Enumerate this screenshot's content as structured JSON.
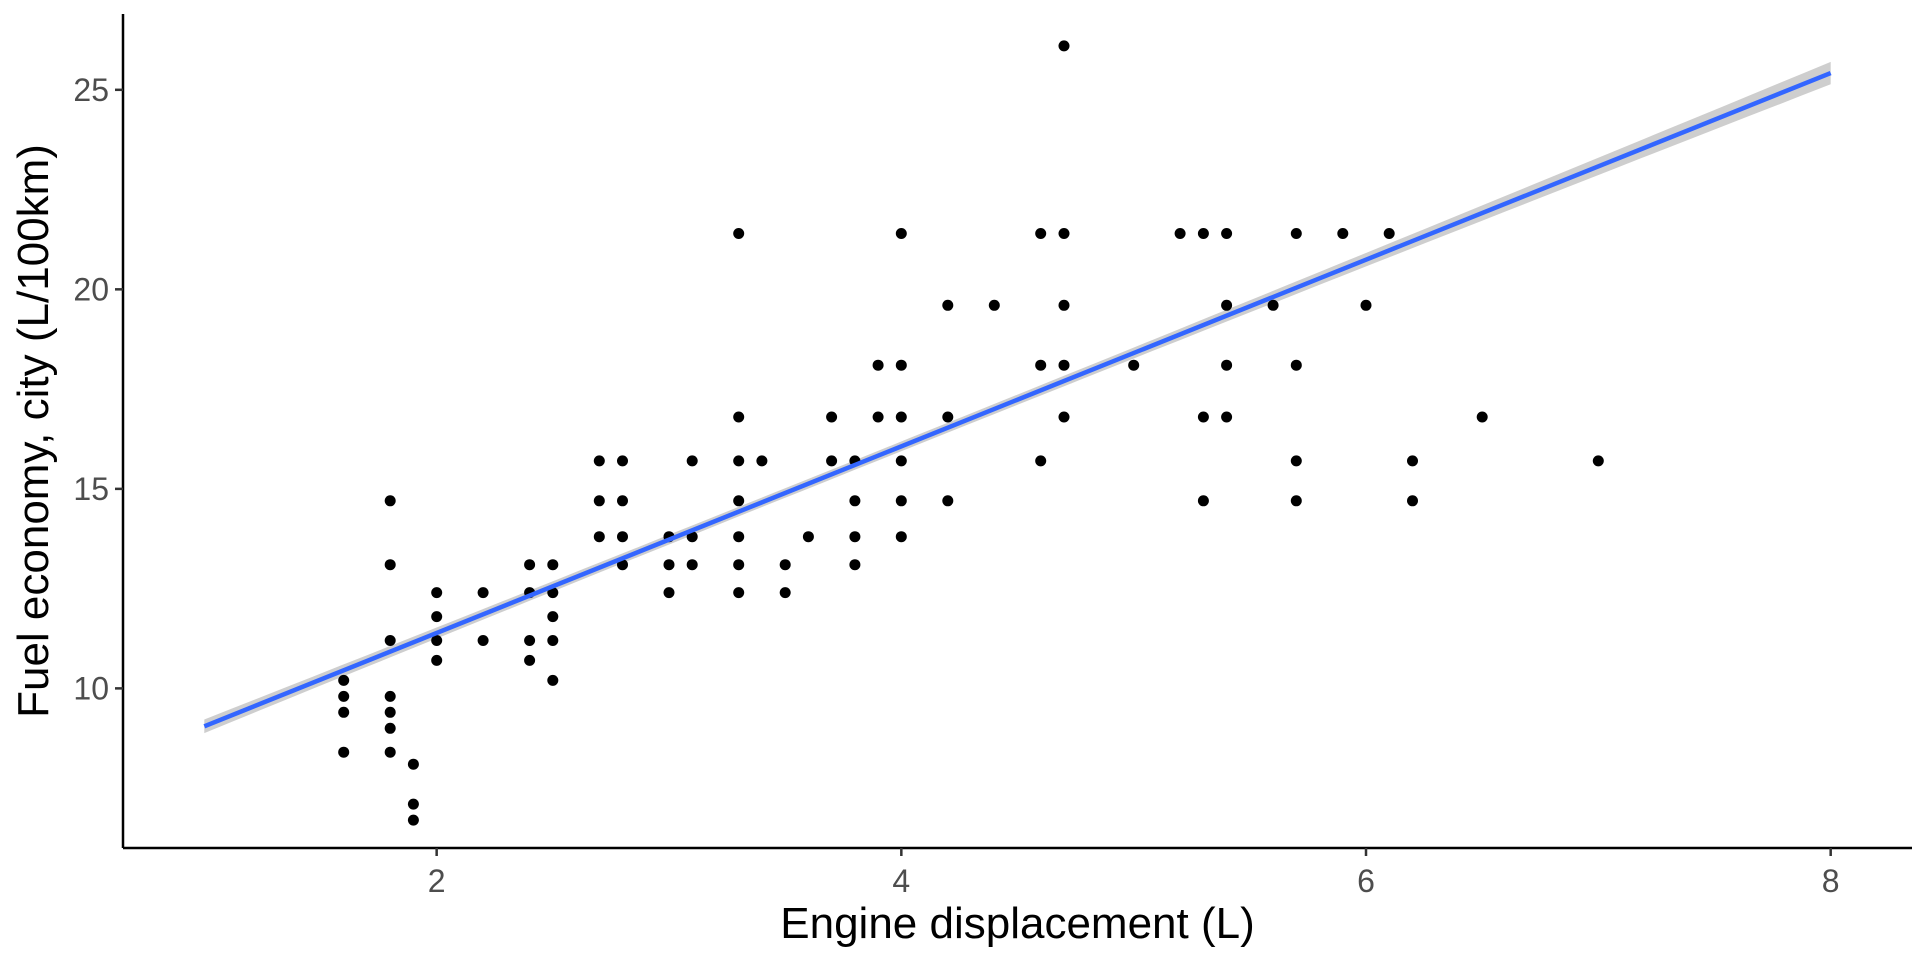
{
  "chart_data": {
    "type": "scatter",
    "title": "",
    "xlabel": "Engine displacement (L)",
    "ylabel": "Fuel economy, city (L/100km)",
    "xlim": [
      0.65,
      8.35
    ],
    "ylim": [
      6.0,
      26.9
    ],
    "x_ticks": [
      2,
      4,
      6,
      8
    ],
    "y_ticks": [
      10,
      15,
      20,
      25
    ],
    "grid": false,
    "legend": "none",
    "points_color": "#000000",
    "fit": {
      "method": "linear",
      "from": [
        1.0,
        9.05
      ],
      "to": [
        8.0,
        25.42
      ],
      "color": "#3366FF",
      "band_color": "#BEBEBE",
      "band_halfwidth_ends": 0.28,
      "band_halfwidth_mid": 0.12,
      "band_center_x": 3.5
    },
    "points": [
      [
        1.6,
        10.2
      ],
      [
        1.6,
        9.8
      ],
      [
        1.6,
        9.4
      ],
      [
        1.6,
        8.4
      ],
      [
        1.8,
        14.7
      ],
      [
        1.8,
        13.1
      ],
      [
        1.8,
        11.2
      ],
      [
        1.8,
        9.8
      ],
      [
        1.8,
        9.4
      ],
      [
        1.8,
        9.0
      ],
      [
        1.8,
        8.4
      ],
      [
        1.9,
        8.1
      ],
      [
        1.9,
        7.1
      ],
      [
        1.9,
        6.7
      ],
      [
        2.0,
        12.4
      ],
      [
        2.0,
        11.8
      ],
      [
        2.0,
        11.2
      ],
      [
        2.0,
        10.7
      ],
      [
        2.2,
        12.4
      ],
      [
        2.2,
        11.2
      ],
      [
        2.4,
        13.1
      ],
      [
        2.4,
        12.4
      ],
      [
        2.4,
        11.2
      ],
      [
        2.4,
        10.7
      ],
      [
        2.5,
        13.1
      ],
      [
        2.5,
        12.4
      ],
      [
        2.5,
        11.8
      ],
      [
        2.5,
        11.2
      ],
      [
        2.5,
        10.2
      ],
      [
        2.7,
        15.7
      ],
      [
        2.7,
        14.7
      ],
      [
        2.7,
        13.8
      ],
      [
        2.8,
        15.7
      ],
      [
        2.8,
        14.7
      ],
      [
        2.8,
        13.8
      ],
      [
        2.8,
        13.1
      ],
      [
        3.0,
        13.8
      ],
      [
        3.0,
        13.1
      ],
      [
        3.0,
        12.4
      ],
      [
        3.1,
        15.7
      ],
      [
        3.1,
        13.8
      ],
      [
        3.1,
        13.1
      ],
      [
        3.3,
        21.4
      ],
      [
        3.3,
        16.8
      ],
      [
        3.3,
        15.7
      ],
      [
        3.3,
        14.7
      ],
      [
        3.3,
        13.8
      ],
      [
        3.3,
        13.1
      ],
      [
        3.3,
        12.4
      ],
      [
        3.4,
        15.7
      ],
      [
        3.5,
        13.1
      ],
      [
        3.5,
        12.4
      ],
      [
        3.6,
        13.8
      ],
      [
        3.7,
        16.8
      ],
      [
        3.7,
        15.7
      ],
      [
        3.8,
        15.7
      ],
      [
        3.8,
        14.7
      ],
      [
        3.8,
        13.8
      ],
      [
        3.8,
        13.1
      ],
      [
        3.9,
        18.1
      ],
      [
        3.9,
        16.8
      ],
      [
        4.0,
        21.4
      ],
      [
        4.0,
        18.1
      ],
      [
        4.0,
        16.8
      ],
      [
        4.0,
        15.7
      ],
      [
        4.0,
        14.7
      ],
      [
        4.0,
        13.8
      ],
      [
        4.2,
        19.6
      ],
      [
        4.2,
        16.8
      ],
      [
        4.2,
        14.7
      ],
      [
        4.4,
        19.6
      ],
      [
        4.6,
        21.4
      ],
      [
        4.6,
        18.1
      ],
      [
        4.6,
        15.7
      ],
      [
        4.7,
        26.1
      ],
      [
        4.7,
        21.4
      ],
      [
        4.7,
        19.6
      ],
      [
        4.7,
        18.1
      ],
      [
        4.7,
        16.8
      ],
      [
        5.0,
        18.1
      ],
      [
        5.2,
        21.4
      ],
      [
        5.3,
        21.4
      ],
      [
        5.3,
        16.8
      ],
      [
        5.3,
        14.7
      ],
      [
        5.4,
        21.4
      ],
      [
        5.4,
        19.6
      ],
      [
        5.4,
        18.1
      ],
      [
        5.4,
        16.8
      ],
      [
        5.6,
        19.6
      ],
      [
        5.7,
        21.4
      ],
      [
        5.7,
        18.1
      ],
      [
        5.7,
        15.7
      ],
      [
        5.7,
        14.7
      ],
      [
        5.9,
        21.4
      ],
      [
        6.0,
        19.6
      ],
      [
        6.1,
        21.4
      ],
      [
        6.2,
        15.7
      ],
      [
        6.2,
        14.7
      ],
      [
        6.5,
        16.8
      ],
      [
        7.0,
        15.7
      ]
    ]
  }
}
